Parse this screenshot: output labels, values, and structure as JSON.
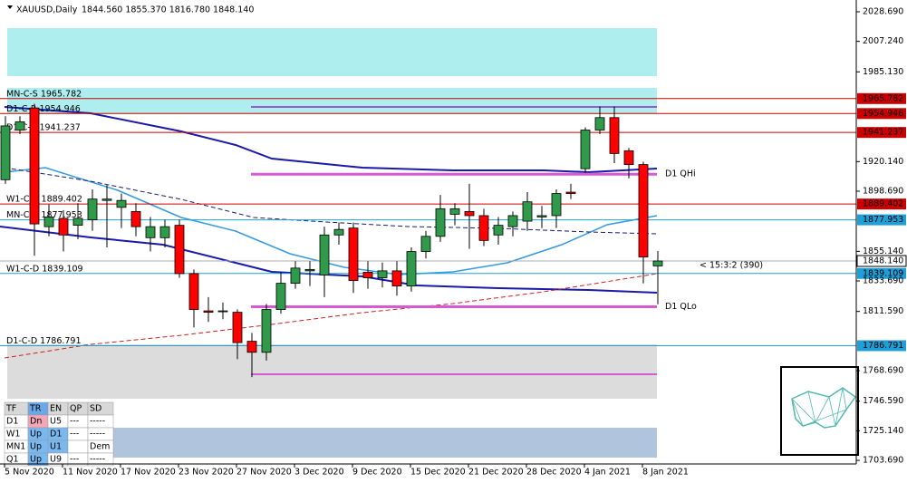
{
  "chart_data": {
    "type": "candlestick",
    "title": "XAUUSD,Daily",
    "last_bar_text": "1844.560 1855.370 1816.780 1848.140",
    "categories": [
      "5 Nov 2020",
      null,
      null,
      null,
      "11 Nov 2020",
      null,
      null,
      null,
      "17 Nov 2020",
      null,
      null,
      null,
      "23 Nov 2020",
      null,
      null,
      null,
      "27 Nov 2020",
      null,
      null,
      null,
      "3 Dec 2020",
      null,
      null,
      null,
      "9 Dec 2020",
      null,
      null,
      null,
      "15 Dec 2020",
      null,
      null,
      null,
      "21 Dec 2020",
      null,
      null,
      null,
      "28 Dec 2020",
      null,
      null,
      null,
      "4 Jan 2021",
      null,
      null,
      null,
      "8 Jan 2021",
      null
    ],
    "open": [
      1907,
      1943,
      1959,
      1873,
      1879,
      1874,
      1878,
      1892,
      1887,
      1884,
      1865,
      1865,
      1874,
      1839,
      1812,
      1812,
      1811,
      1790,
      1782,
      1813,
      1832,
      1841,
      1838,
      1867,
      1872,
      1840,
      1836,
      1841,
      1830,
      1855,
      1866,
      1882,
      1884,
      1881,
      1867,
      1873,
      1877,
      1880,
      1881,
      1898,
      1915,
      1943,
      1952,
      1928,
      1918,
      1844.56
    ],
    "high": [
      1953,
      1953,
      1962,
      1889,
      1885,
      1890,
      1900,
      1903,
      1897,
      1890,
      1880,
      1878,
      1878,
      1842,
      1822,
      1818,
      1813,
      1796,
      1817,
      1840,
      1848,
      1848,
      1873,
      1876,
      1876,
      1848,
      1847,
      1848,
      1858,
      1870,
      1896,
      1890,
      1904,
      1886,
      1880,
      1884,
      1898,
      1888,
      1900,
      1904,
      1945,
      1960,
      1960,
      1930,
      1920,
      1855.37
    ],
    "low": [
      1904,
      1940,
      1852,
      1866,
      1855,
      1864,
      1870,
      1858,
      1872,
      1866,
      1855,
      1858,
      1836,
      1800,
      1804,
      1806,
      1777,
      1764,
      1776,
      1810,
      1828,
      1830,
      1822,
      1860,
      1825,
      1828,
      1829,
      1823,
      1826,
      1850,
      1862,
      1874,
      1857,
      1859,
      1860,
      1866,
      1870,
      1872,
      1872,
      1893,
      1912,
      1940,
      1919,
      1908,
      1832,
      1816.78
    ],
    "close": [
      1946,
      1949,
      1875,
      1880,
      1867,
      1879,
      1893,
      1893,
      1892,
      1873,
      1873,
      1873,
      1839,
      1813,
      1811,
      1812,
      1789,
      1782,
      1813,
      1832,
      1843,
      1842,
      1867,
      1871,
      1834,
      1836,
      1841,
      1830,
      1855,
      1866,
      1886,
      1886,
      1881,
      1863,
      1874,
      1881,
      1891,
      1881,
      1897,
      1897,
      1943,
      1952,
      1926,
      1918,
      1851,
      1848.14
    ],
    "up_color": "#2e9a4a",
    "down_color": "#ff0000",
    "ylim": [
      1701.1,
      2037.2
    ],
    "yticks": [
      {
        "value": 2028.69,
        "label": "2028.690"
      },
      {
        "value": 2007.24,
        "label": "2007.240"
      },
      {
        "value": 1985.13,
        "label": "1985.130"
      },
      {
        "value": 1920.14,
        "label": "1920.140"
      },
      {
        "value": 1898.69,
        "label": "1898.690"
      },
      {
        "value": 1855.14,
        "label": "1855.140"
      },
      {
        "value": 1833.69,
        "label": "1833.690"
      },
      {
        "value": 1811.59,
        "label": "1811.590"
      },
      {
        "value": 1768.69,
        "label": "1768.690"
      },
      {
        "value": 1746.59,
        "label": "1746.590"
      },
      {
        "value": 1725.14,
        "label": "1725.140"
      },
      {
        "value": 1703.69,
        "label": "1703.690"
      }
    ],
    "levels": [
      {
        "label": "MN-C-S 1965.782",
        "value": 1965.782,
        "color": "#cc0000"
      },
      {
        "label": "D1-C-R 1954.946",
        "value": 1954.946,
        "color": "#cc0000"
      },
      {
        "label": "D1-C-R 1941.237",
        "value": 1941.237,
        "color": "#cc0000"
      },
      {
        "label": "W1-C-R 1889.402",
        "value": 1889.402,
        "color": "#cc0000"
      },
      {
        "label": "MN-C-R 1877.953",
        "value": 1877.953,
        "color": "#1e9fd8"
      },
      {
        "label": "W1-C-D 1839.109",
        "value": 1839.109,
        "color": "#1e9fd8"
      },
      {
        "label": "D1-C-D 1786.791",
        "value": 1786.791,
        "color": "#1e9fd8"
      }
    ],
    "current_price": {
      "value": 1848.14,
      "label": "1848.140"
    },
    "quarter_lines": [
      {
        "label": "D1 QHi",
        "value": 1911
      },
      {
        "label": "D1 QLo",
        "value": 1815
      }
    ],
    "ratio_note": "< 15:3:2 (390)",
    "table": {
      "header": [
        "TF",
        "TR",
        "EN",
        "QP",
        "SD"
      ],
      "rows": [
        [
          "D1",
          "Dn",
          "U5",
          "---",
          "-----"
        ],
        [
          "W1",
          "Up",
          "D1",
          "---",
          "-----"
        ],
        [
          "MN1",
          "Up",
          "U1",
          null,
          "Dem"
        ],
        [
          "Q1",
          "Up",
          "U9",
          "---",
          "-----"
        ]
      ]
    }
  }
}
